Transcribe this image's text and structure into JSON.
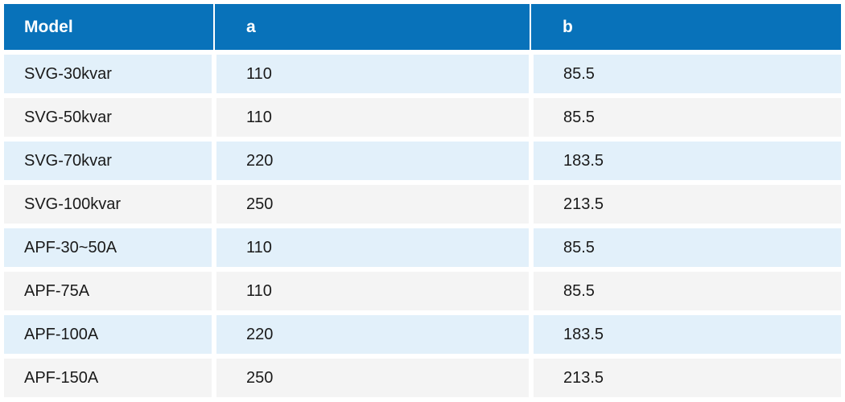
{
  "colors": {
    "header_bg": "#0872ba",
    "header_text": "#ffffff",
    "row_blue": "#e2f0fa",
    "row_gray": "#f4f4f4",
    "cell_text": "#1a1a1a",
    "gap": "#ffffff"
  },
  "table": {
    "columns": [
      {
        "key": "model",
        "label": "Model"
      },
      {
        "key": "a",
        "label": "a"
      },
      {
        "key": "b",
        "label": "b"
      }
    ],
    "rows": [
      {
        "model": "SVG-30kvar",
        "a": "110",
        "b": "85.5"
      },
      {
        "model": "SVG-50kvar",
        "a": "110",
        "b": "85.5"
      },
      {
        "model": "SVG-70kvar",
        "a": "220",
        "b": "183.5"
      },
      {
        "model": "SVG-100kvar",
        "a": "250",
        "b": "213.5"
      },
      {
        "model": "APF-30~50A",
        "a": "110",
        "b": "85.5"
      },
      {
        "model": "APF-75A",
        "a": "110",
        "b": "85.5"
      },
      {
        "model": "APF-100A",
        "a": "220",
        "b": "183.5"
      },
      {
        "model": "APF-150A",
        "a": "250",
        "b": "213.5"
      }
    ]
  },
  "chart_data": {
    "type": "table",
    "columns": [
      "Model",
      "a",
      "b"
    ],
    "rows": [
      [
        "SVG-30kvar",
        110,
        85.5
      ],
      [
        "SVG-50kvar",
        110,
        85.5
      ],
      [
        "SVG-70kvar",
        220,
        183.5
      ],
      [
        "SVG-100kvar",
        250,
        213.5
      ],
      [
        "APF-30~50A",
        110,
        85.5
      ],
      [
        "APF-75A",
        110,
        85.5
      ],
      [
        "APF-100A",
        220,
        183.5
      ],
      [
        "APF-150A",
        250,
        213.5
      ]
    ]
  }
}
